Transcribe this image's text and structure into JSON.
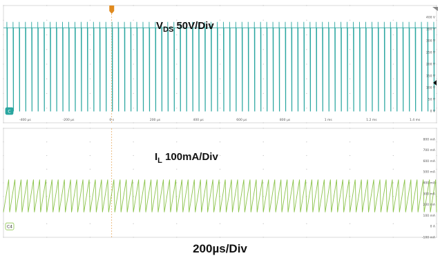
{
  "chart_data": [
    {
      "type": "line",
      "name_label": {
        "main": "V",
        "sub": "DS",
        "rest": " 50V/Div"
      },
      "color": "#2aa6a0",
      "channel_badge": "C",
      "x": {
        "min": -500,
        "max": 1500,
        "unit": "µs",
        "tick_labels": [
          "-400 µs",
          "-200 µs",
          "0 s",
          "200 µs",
          "400 µs",
          "600 µs",
          "800 µs",
          "1 ms",
          "1.2 ms",
          "1.4 ms"
        ],
        "tick_values": [
          -400,
          -200,
          0,
          200,
          400,
          600,
          800,
          1000,
          1200,
          1400
        ]
      },
      "y": {
        "min": -50,
        "max": 450,
        "unit": "V",
        "tick_labels": [
          "400 V",
          "350 V",
          "300 V",
          "250 V",
          "200 V",
          "150 V",
          "100 V",
          "50 V",
          "0 V"
        ],
        "tick_values": [
          400,
          350,
          300,
          250,
          200,
          150,
          100,
          50,
          0
        ]
      },
      "waveform": {
        "shape": "pulse",
        "high": 355,
        "low": 0,
        "pulse_count": 70,
        "peak": 380
      }
    },
    {
      "type": "line",
      "name_label": {
        "main": "I",
        "sub": "L",
        "rest": " 100mA/Div"
      },
      "color": "#8bc34a",
      "channel_badge": "C4",
      "x": {
        "min": -500,
        "max": 1500,
        "unit": "µs"
      },
      "y": {
        "min": -100,
        "max": 900,
        "unit": "mA",
        "tick_labels": [
          "800 mA",
          "700 mA",
          "600 mA",
          "500 mA",
          "400 mA",
          "300 mA",
          "200 mA",
          "100 mA",
          "0 A",
          "-100 mA"
        ],
        "tick_values": [
          800,
          700,
          600,
          500,
          400,
          300,
          200,
          100,
          0,
          -100
        ]
      },
      "waveform": {
        "shape": "sawtooth",
        "high": 430,
        "low": 130,
        "cycles": 70
      }
    }
  ],
  "time_scale_label": "200µs/Div"
}
